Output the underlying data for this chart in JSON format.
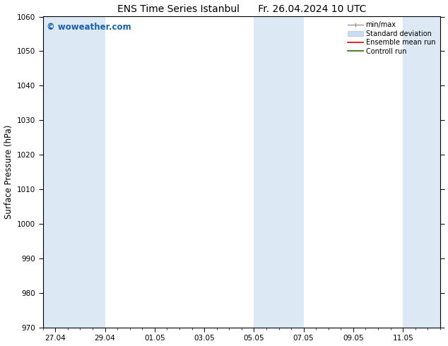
{
  "title_left": "ENS Time Series Istanbul",
  "title_right": "Fr. 26.04.2024 10 UTC",
  "ylabel": "Surface Pressure (hPa)",
  "ylim": [
    970,
    1060
  ],
  "yticks": [
    970,
    980,
    990,
    1000,
    1010,
    1020,
    1030,
    1040,
    1050,
    1060
  ],
  "xtick_labels": [
    "27.04",
    "29.04",
    "01.05",
    "03.05",
    "05.05",
    "07.05",
    "09.05",
    "11.05"
  ],
  "xtick_positions": [
    0,
    2,
    4,
    6,
    8,
    10,
    12,
    14
  ],
  "xlim": [
    -0.5,
    15.5
  ],
  "shaded_bands": [
    {
      "x_start": -0.5,
      "x_end": 2
    },
    {
      "x_start": 8,
      "x_end": 10
    },
    {
      "x_start": 14,
      "x_end": 15.5
    }
  ],
  "shaded_color": "#dce9f5",
  "watermark": "© woweather.com",
  "watermark_color": "#1a5fa8",
  "bg_color": "#ffffff",
  "plot_bg_color": "#ffffff",
  "title_fontsize": 10,
  "tick_fontsize": 7.5,
  "label_fontsize": 8.5
}
